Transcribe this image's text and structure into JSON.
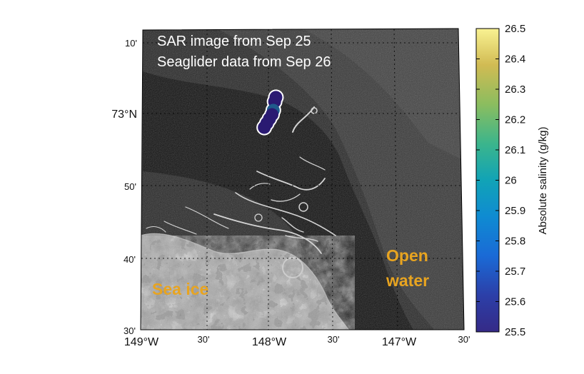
{
  "annotation": {
    "line1": "SAR image from Sep 25",
    "line2": "Seaglider data from Sep 26"
  },
  "regions": {
    "sea_ice": "Sea ice",
    "open_water": "Open water",
    "open_water_line1": "Open",
    "open_water_line2": "water",
    "label_color": "#E8A420"
  },
  "map": {
    "lon_range": [
      "149°W",
      "146°30'W"
    ],
    "lat_range": [
      "72°30'N",
      "73°10'N"
    ],
    "lat_ticks": [
      {
        "label": "10'",
        "big": false
      },
      {
        "label": "73°N",
        "big": true
      },
      {
        "label": "50'",
        "big": false
      },
      {
        "label": "40'",
        "big": false
      },
      {
        "label": "30'",
        "big": false
      }
    ],
    "lon_ticks": [
      {
        "label": "149°W",
        "big": true
      },
      {
        "label": "30'",
        "big": false
      },
      {
        "label": "148°W",
        "big": true
      },
      {
        "label": "30'",
        "big": false
      },
      {
        "label": "147°W",
        "big": true
      },
      {
        "label": "30'",
        "big": false
      }
    ]
  },
  "glider_track": {
    "points": [
      {
        "lon": -147.96,
        "lat": 73.04,
        "salinity": 25.56
      },
      {
        "lon": -147.97,
        "lat": 73.03,
        "salinity": 25.6
      },
      {
        "lon": -147.98,
        "lat": 73.01,
        "salinity": 25.72
      },
      {
        "lon": -147.99,
        "lat": 73.0,
        "salinity": 25.62
      },
      {
        "lon": -148.01,
        "lat": 72.99,
        "salinity": 25.57
      },
      {
        "lon": -148.03,
        "lat": 72.98,
        "salinity": 25.54
      },
      {
        "lon": -148.05,
        "lat": 72.97,
        "salinity": 25.52
      }
    ],
    "colors": {
      "low": "#2a1a72",
      "mid": "#1f5b8c"
    }
  },
  "colorbar": {
    "label": "Absolute salinity (g/kg)",
    "min": 25.5,
    "max": 26.5,
    "ticks": [
      "26.5",
      "26.4",
      "26.3",
      "26.2",
      "26.1",
      "26",
      "25.9",
      "25.8",
      "25.7",
      "25.6",
      "25.5"
    ],
    "colormap": "viridis"
  }
}
